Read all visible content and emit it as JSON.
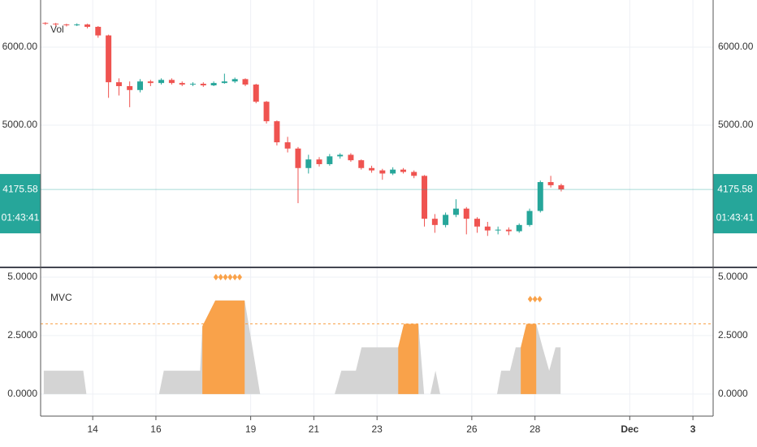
{
  "chart_data": [
    {
      "type": "candlestick",
      "title": "Vol",
      "x": [
        12.5,
        12.83,
        13.17,
        13.5,
        13.83,
        14.17,
        14.5,
        14.83,
        15.17,
        15.5,
        15.83,
        16.17,
        16.5,
        16.83,
        17.17,
        17.5,
        17.83,
        18.17,
        18.5,
        18.83,
        19.17,
        19.5,
        19.83,
        20.17,
        20.5,
        20.83,
        21.17,
        21.5,
        21.83,
        22.17,
        22.5,
        22.83,
        23.17,
        23.5,
        23.83,
        24.17,
        24.5,
        24.83,
        25.17,
        25.5,
        25.83,
        26.17,
        26.5,
        26.83,
        27.17,
        27.5,
        27.83,
        28.17,
        28.5,
        28.83
      ],
      "open": [
        6310,
        6300,
        6290,
        6280,
        6290,
        6260,
        6150,
        5550,
        5500,
        5450,
        5560,
        5540,
        5580,
        5540,
        5520,
        5530,
        5510,
        5540,
        5560,
        5590,
        5520,
        5300,
        5050,
        4780,
        4700,
        4450,
        4560,
        4500,
        4600,
        4620,
        4550,
        4450,
        4420,
        4380,
        4430,
        4400,
        4350,
        3800,
        3720,
        3850,
        3930,
        3800,
        3700,
        3650,
        3660,
        3640,
        3720,
        3900,
        4270,
        4230
      ],
      "high": [
        6320,
        6310,
        6300,
        6305,
        6300,
        6270,
        6160,
        5600,
        5560,
        5590,
        5580,
        5600,
        5600,
        5560,
        5550,
        5550,
        5560,
        5660,
        5610,
        5600,
        5530,
        5310,
        5060,
        4850,
        4720,
        4620,
        4590,
        4630,
        4640,
        4640,
        4560,
        4480,
        4440,
        4460,
        4450,
        4420,
        4360,
        3860,
        3880,
        4050,
        3950,
        3820,
        3760,
        3700,
        3690,
        3740,
        3930,
        4290,
        4350,
        4250
      ],
      "low": [
        6285,
        6270,
        6265,
        6270,
        6240,
        6120,
        5350,
        5380,
        5230,
        5420,
        5500,
        5520,
        5520,
        5500,
        5500,
        5490,
        5500,
        5530,
        5540,
        5500,
        5280,
        5020,
        4740,
        4650,
        4000,
        4380,
        4470,
        4480,
        4570,
        4530,
        4430,
        4390,
        4300,
        4360,
        4380,
        4320,
        3700,
        3620,
        3690,
        3820,
        3600,
        3620,
        3580,
        3600,
        3590,
        3620,
        3700,
        3880,
        4200,
        4150
      ],
      "close": [
        6300,
        6290,
        6280,
        6290,
        6260,
        6150,
        5550,
        5500,
        5450,
        5560,
        5540,
        5580,
        5540,
        5520,
        5530,
        5510,
        5540,
        5560,
        5590,
        5520,
        5300,
        5050,
        4780,
        4700,
        4450,
        4560,
        4500,
        4600,
        4620,
        4550,
        4450,
        4420,
        4380,
        4430,
        4400,
        4350,
        3800,
        3720,
        3850,
        3930,
        3800,
        3700,
        3650,
        3660,
        3640,
        3720,
        3900,
        4270,
        4230,
        4175.58
      ],
      "up_color": "#26a69a",
      "down_color": "#ef5350",
      "last": 4175.58,
      "countdown": "01:43:41",
      "last_color": "#26a69a",
      "xlim": [
        12.35,
        33.64
      ],
      "ylim": [
        3187,
        6604
      ],
      "yticks": [
        {
          "value": 6000,
          "label": "6000.00"
        },
        {
          "value": 5000,
          "label": "5000.00"
        }
      ],
      "grid": true
    },
    {
      "type": "area",
      "title": "MVC",
      "x": [
        12.45,
        13.7,
        13.8,
        16.1,
        16.25,
        17.4,
        17.47,
        17.88,
        18.81,
        19.3,
        21.66,
        21.87,
        22.33,
        22.51,
        23.67,
        23.85,
        24.31,
        24.49,
        24.69,
        24.85,
        25.0,
        26.8,
        26.93,
        27.21,
        27.39,
        27.55,
        27.73,
        28.04,
        28.24,
        28.45,
        28.65,
        28.81
      ],
      "values": [
        1,
        1,
        0,
        0,
        1,
        1,
        2.9,
        4,
        4,
        0,
        0,
        1,
        1,
        2,
        2,
        3,
        3,
        0,
        0,
        1,
        0,
        0,
        1,
        1,
        2,
        2,
        3,
        3,
        2,
        1,
        2,
        2
      ],
      "color": "#d4d4d4",
      "highlight_color": "#f9a24a",
      "highlights": [
        [
          17.47,
          18.81
        ],
        [
          23.67,
          24.31
        ],
        [
          27.55,
          28.04
        ]
      ],
      "signals": {
        "x": [
          17.9,
          18.05,
          18.2,
          18.35,
          18.5,
          18.65,
          27.85,
          28.0,
          28.15
        ],
        "values": [
          5,
          5,
          5,
          5,
          5,
          5,
          4.06,
          4.06,
          4.06
        ]
      },
      "level": 3,
      "xlim": [
        12.35,
        33.64
      ],
      "ylim": [
        -0.94,
        5.38
      ],
      "yticks": [
        {
          "value": 5,
          "label": "5.0000"
        },
        {
          "value": 2.5,
          "label": "2.5000"
        },
        {
          "value": 0,
          "label": "0.0000"
        }
      ],
      "xticks": [
        14,
        16,
        19,
        21,
        23,
        26,
        28,
        {
          "value": 31,
          "label": "Dec"
        },
        {
          "value": 33,
          "label": "3"
        }
      ],
      "grid": true
    }
  ]
}
